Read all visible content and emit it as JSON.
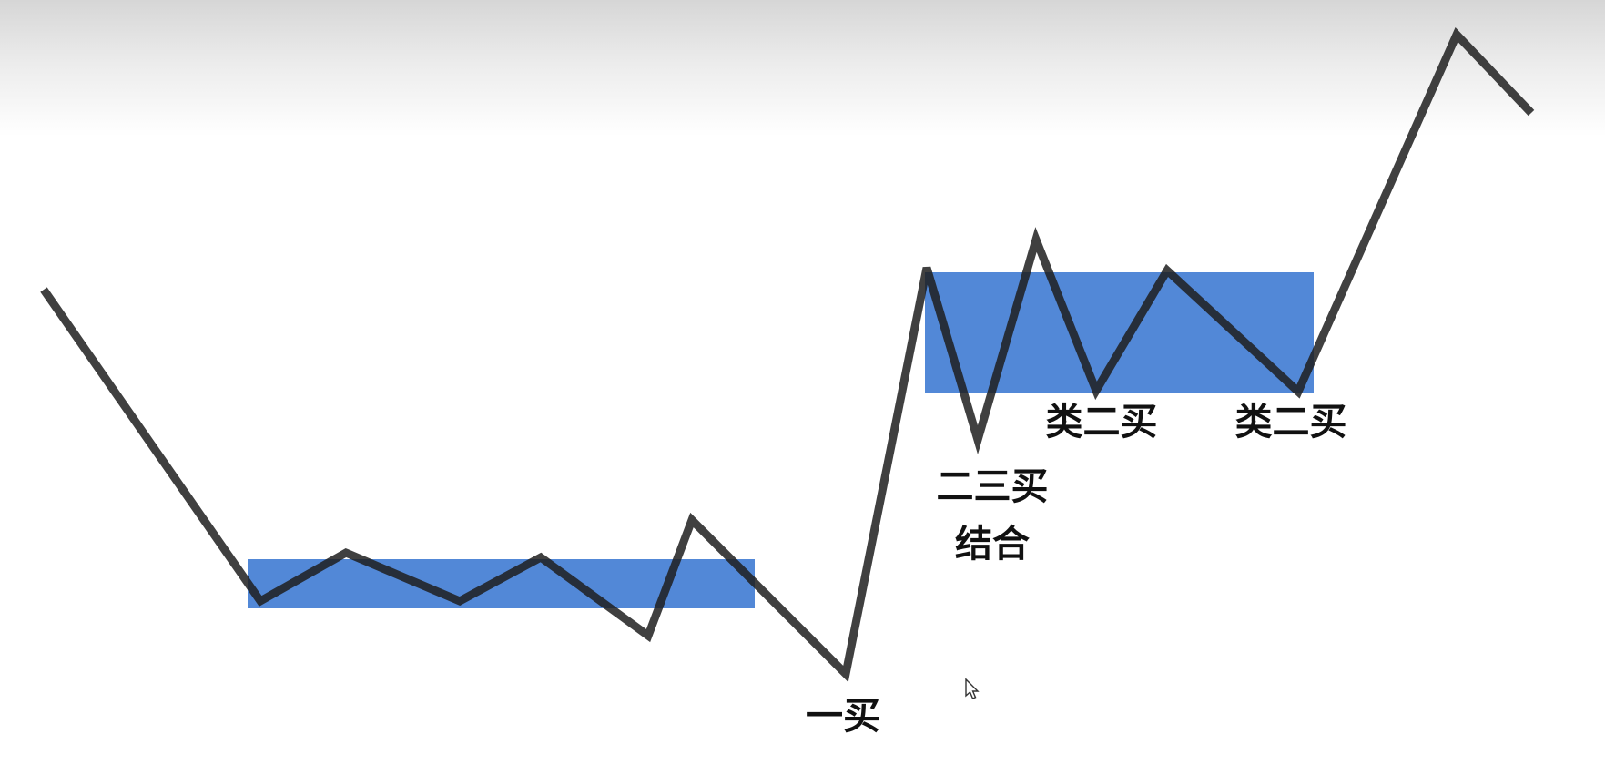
{
  "labels": {
    "first_buy": "一买",
    "second_third_buy_line1": "二三买",
    "second_third_buy_line2": "结合",
    "quasi_second_buy_a": "类二买",
    "quasi_second_buy_b": "类二买"
  },
  "colors": {
    "zone_fill": "#3a78d2",
    "line": "#1f1f1f",
    "label": "#111111"
  },
  "icons": [
    "mouse-cursor-icon"
  ]
}
